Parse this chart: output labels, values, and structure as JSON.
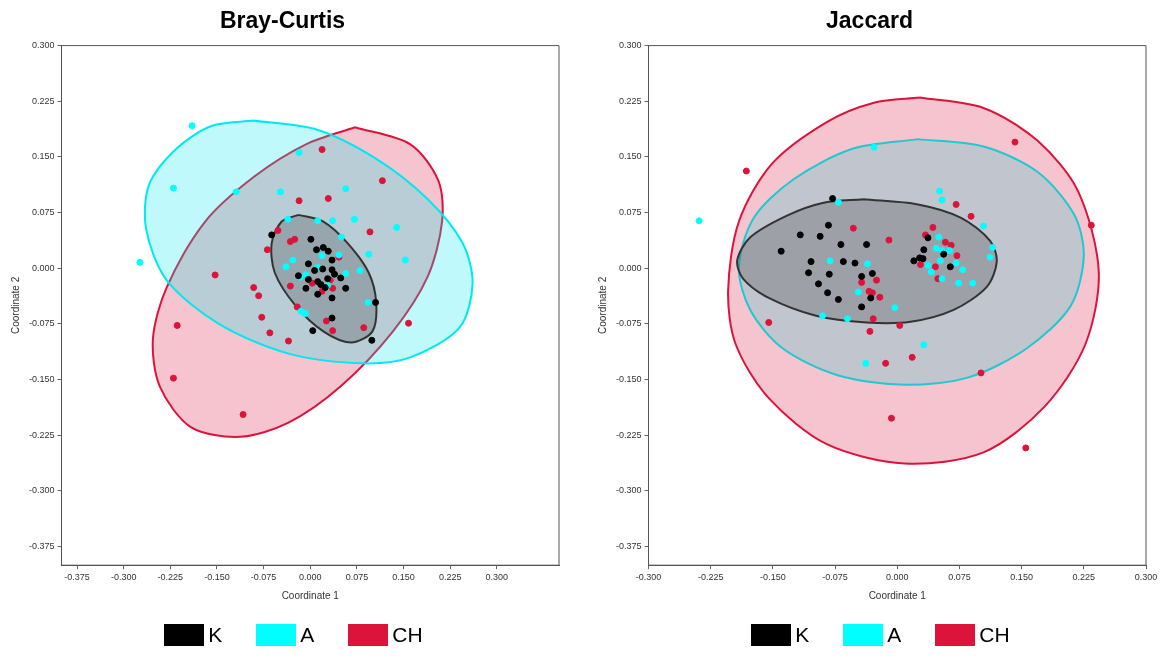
{
  "chart_data": [
    {
      "type": "scatter",
      "title": "Bray-Curtis",
      "xlabel": "Coordinate 1",
      "ylabel": "Coordinate 2",
      "marker": "circle",
      "legend": "bottom",
      "grid": false,
      "xlim": [
        -0.4,
        0.4
      ],
      "ylim": [
        -0.4,
        0.3
      ],
      "xticks": [
        {
          "value": -0.375,
          "label": "-0.375"
        },
        {
          "value": -0.3,
          "label": "-0.300"
        },
        {
          "value": -0.225,
          "label": "-0.225"
        },
        {
          "value": -0.15,
          "label": "-0.150"
        },
        {
          "value": -0.075,
          "label": "-0.075"
        },
        {
          "value": 0,
          "label": "0.000"
        },
        {
          "value": 0.075,
          "label": "0.075"
        },
        {
          "value": 0.15,
          "label": "0.150"
        },
        {
          "value": 0.225,
          "label": "0.225"
        },
        {
          "value": 0.3,
          "label": "0.300"
        }
      ],
      "yticks": [
        {
          "value": -0.375,
          "label": "-0.375"
        },
        {
          "value": -0.3,
          "label": "-0.300"
        },
        {
          "value": -0.225,
          "label": "-0.225"
        },
        {
          "value": -0.15,
          "label": "-0.150"
        },
        {
          "value": -0.075,
          "label": "-0.075"
        },
        {
          "value": 0,
          "label": "0.000"
        },
        {
          "value": 0.075,
          "label": "0.075"
        },
        {
          "value": 0.15,
          "label": "0.150"
        },
        {
          "value": 0.225,
          "label": "0.225"
        },
        {
          "value": 0.3,
          "label": "0.300"
        }
      ],
      "series": [
        {
          "type": "area",
          "marker": "none",
          "color": "#dc143c",
          "x": [
            0.072,
            0.161,
            0.206,
            0.212,
            0.189,
            0.133,
            0.049,
            -0.035,
            -0.113,
            -0.192,
            -0.242,
            -0.253,
            -0.231,
            -0.169,
            -0.091,
            -0.007,
            0.072
          ],
          "values": [
            0.19,
            0.167,
            0.118,
            0.063,
            -0.011,
            -0.085,
            -0.159,
            -0.208,
            -0.227,
            -0.214,
            -0.159,
            -0.095,
            -0.026,
            0.063,
            0.123,
            0.167,
            0.19
          ]
        },
        {
          "type": "area",
          "marker": "none",
          "color": "#00e8f0",
          "x": [
            -0.091,
            0.01,
            0.105,
            0.189,
            0.245,
            0.261,
            0.24,
            0.161,
            0.083,
            -0.035,
            -0.147,
            -0.231,
            -0.264,
            -0.259,
            -0.214,
            -0.158,
            -0.091
          ],
          "values": [
            0.199,
            0.187,
            0.148,
            0.093,
            0.034,
            -0.021,
            -0.08,
            -0.12,
            -0.128,
            -0.115,
            -0.075,
            -0.016,
            0.053,
            0.113,
            0.162,
            0.192,
            0.199
          ]
        },
        {
          "type": "area",
          "marker": "none",
          "color": "#333333",
          "x": [
            -0.019,
            0.021,
            0.06,
            0.094,
            0.106,
            0.1,
            0.066,
            0.021,
            -0.024,
            -0.057,
            -0.062,
            -0.046,
            -0.019
          ],
          "values": [
            0.072,
            0.063,
            0.034,
            -0.006,
            -0.046,
            -0.085,
            -0.1,
            -0.085,
            -0.05,
            -0.006,
            0.034,
            0.063,
            0.072
          ]
        },
        {
          "name": "K",
          "color": "#000000",
          "x": [
            -0.062,
            0.001,
            0.01,
            0.021,
            0.029,
            0.035,
            -0.003,
            0.02,
            0.035,
            0.007,
            0.039,
            -0.019,
            -0.003,
            0.012,
            0.028,
            0.049,
            0.017,
            0.024,
            -0.007,
            0.012,
            0.057,
            0.035,
            0.105,
            0.035,
            0.004,
            0.099
          ],
          "values": [
            0.045,
            0.039,
            0.025,
            0.028,
            0.023,
            0.011,
            0.006,
            -0.001,
            -0.002,
            -0.003,
            -0.008,
            -0.01,
            -0.015,
            -0.018,
            -0.014,
            -0.013,
            -0.022,
            -0.026,
            -0.027,
            -0.035,
            -0.027,
            -0.04,
            -0.046,
            -0.067,
            -0.084,
            -0.097
          ]
        },
        {
          "name": "A",
          "color": "#00ffff",
          "x": [
            -0.19,
            -0.22,
            -0.274,
            -0.119,
            -0.048,
            -0.018,
            0.057,
            -0.036,
            0.012,
            0.036,
            0.071,
            0.139,
            0.05,
            0.094,
            0.153,
            0.046,
            0.019,
            -0.028,
            -0.039,
            0.012,
            0.057,
            0.08,
            -0.007,
            -0.016,
            0.028,
            0.093,
            -0.015,
            -0.008
          ],
          "values": [
            0.192,
            0.108,
            0.008,
            0.103,
            0.103,
            0.156,
            0.107,
            0.066,
            0.064,
            0.064,
            0.066,
            0.055,
            0.042,
            0.019,
            0.011,
            0.018,
            0.017,
            0.011,
            0.002,
            0.001,
            -0.007,
            -0.003,
            -0.009,
            -0.012,
            -0.023,
            -0.046,
            -0.058,
            -0.061
          ]
        },
        {
          "name": "CH",
          "color": "#dc143c",
          "x": [
            0.019,
            0.116,
            -0.018,
            0.029,
            0.096,
            -0.052,
            -0.032,
            -0.025,
            -0.069,
            0.046,
            -0.153,
            -0.091,
            -0.083,
            -0.032,
            0.003,
            0.032,
            0.036,
            0.019,
            -0.021,
            -0.078,
            0.026,
            0.036,
            0.086,
            0.158,
            -0.065,
            -0.035,
            -0.214,
            -0.22,
            -0.108
          ],
          "values": [
            0.16,
            0.118,
            0.091,
            0.094,
            0.049,
            0.051,
            0.036,
            0.039,
            0.025,
            0.015,
            -0.009,
            -0.026,
            -0.037,
            -0.024,
            -0.02,
            -0.016,
            -0.027,
            -0.031,
            -0.052,
            -0.066,
            -0.071,
            -0.084,
            -0.08,
            -0.074,
            -0.087,
            -0.098,
            -0.077,
            -0.148,
            -0.197
          ]
        }
      ]
    },
    {
      "type": "scatter",
      "title": "Jaccard",
      "xlabel": "Coordinate 1",
      "ylabel": "Coordinate 2",
      "marker": "circle",
      "legend": "bottom",
      "grid": false,
      "xlim": [
        -0.3,
        0.3
      ],
      "ylim": [
        -0.4,
        0.3
      ],
      "xticks": [
        {
          "value": -0.3,
          "label": "-0.300"
        },
        {
          "value": -0.225,
          "label": "-0.225"
        },
        {
          "value": -0.15,
          "label": "-0.150"
        },
        {
          "value": -0.075,
          "label": "-0.075"
        },
        {
          "value": 0,
          "label": "0.000"
        },
        {
          "value": 0.075,
          "label": "0.075"
        },
        {
          "value": 0.15,
          "label": "0.150"
        },
        {
          "value": 0.225,
          "label": "0.225"
        },
        {
          "value": 0.3,
          "label": "0.300"
        }
      ],
      "yticks": [
        {
          "value": -0.375,
          "label": "-0.375"
        },
        {
          "value": -0.3,
          "label": "-0.300"
        },
        {
          "value": -0.225,
          "label": "-0.225"
        },
        {
          "value": -0.15,
          "label": "-0.150"
        },
        {
          "value": -0.075,
          "label": "-0.075"
        },
        {
          "value": 0,
          "label": "0.000"
        },
        {
          "value": 0.075,
          "label": "0.075"
        },
        {
          "value": 0.15,
          "label": "0.150"
        },
        {
          "value": 0.225,
          "label": "0.225"
        },
        {
          "value": 0.3,
          "label": "0.300"
        }
      ],
      "series": [
        {
          "type": "area",
          "marker": "none",
          "color": "#dc143c",
          "x": [
            0.027,
            0.104,
            0.169,
            0.218,
            0.243,
            0.227,
            0.178,
            0.104,
            0.009,
            -0.085,
            -0.155,
            -0.195,
            -0.204,
            -0.191,
            -0.151,
            -0.085,
            -0.028,
            0.027
          ],
          "values": [
            0.23,
            0.216,
            0.172,
            0.104,
            -0.004,
            -0.102,
            -0.186,
            -0.248,
            -0.263,
            -0.237,
            -0.175,
            -0.102,
            -0.03,
            0.063,
            0.141,
            0.197,
            0.223,
            0.23
          ]
        },
        {
          "type": "area",
          "marker": "none",
          "color": "#20c8d0",
          "x": [
            0.025,
            0.104,
            0.169,
            0.213,
            0.225,
            0.209,
            0.156,
            0.086,
            0.009,
            -0.072,
            -0.138,
            -0.177,
            -0.191,
            -0.173,
            -0.125,
            -0.054,
            0.025
          ],
          "values": [
            0.174,
            0.164,
            0.13,
            0.073,
            0.017,
            -0.051,
            -0.108,
            -0.147,
            -0.157,
            -0.144,
            -0.108,
            -0.057,
            0.001,
            0.068,
            0.12,
            0.161,
            0.174
          ]
        },
        {
          "type": "area",
          "marker": "none",
          "color": "#333333",
          "x": [
            -0.041,
            0.025,
            0.077,
            0.112,
            0.12,
            0.108,
            0.068,
            0.016,
            -0.037,
            -0.098,
            -0.155,
            -0.186,
            -0.193,
            -0.177,
            -0.133,
            -0.09,
            -0.041
          ],
          "values": [
            0.093,
            0.086,
            0.068,
            0.037,
            0.009,
            -0.025,
            -0.056,
            -0.072,
            -0.073,
            -0.064,
            -0.04,
            -0.014,
            0.011,
            0.042,
            0.071,
            0.088,
            0.093
          ]
        },
        {
          "name": "K",
          "color": "#000000",
          "x": [
            -0.078,
            -0.083,
            -0.117,
            -0.093,
            -0.14,
            -0.068,
            -0.037,
            -0.104,
            -0.065,
            -0.051,
            -0.107,
            -0.082,
            -0.043,
            -0.03,
            -0.095,
            -0.084,
            -0.071,
            -0.032,
            -0.043,
            0.037,
            0.032,
            0.02,
            0.027,
            0.031,
            0.056,
            0.064
          ],
          "values": [
            0.094,
            0.058,
            0.045,
            0.043,
            0.023,
            0.032,
            0.032,
            0.009,
            0.009,
            0.007,
            -0.006,
            -0.008,
            -0.011,
            -0.007,
            -0.021,
            -0.033,
            -0.042,
            -0.04,
            -0.052,
            0.041,
            0.025,
            0.01,
            0.014,
            0.013,
            0.019,
            0.002
          ]
        },
        {
          "name": "A",
          "color": "#00ffff",
          "x": [
            -0.239,
            -0.028,
            -0.071,
            -0.081,
            -0.036,
            -0.047,
            -0.09,
            -0.06,
            -0.003,
            0.032,
            -0.038,
            0.051,
            0.054,
            0.104,
            0.115,
            0.112,
            0.05,
            0.047,
            0.054,
            0.063,
            0.052,
            0.071,
            0.037,
            0.041,
            0.079,
            0.054,
            0.074,
            0.091
          ],
          "values": [
            0.064,
            0.163,
            0.089,
            0.01,
            0.006,
            -0.032,
            -0.064,
            -0.068,
            -0.053,
            -0.103,
            -0.128,
            0.104,
            0.092,
            0.057,
            0.028,
            0.015,
            0.042,
            0.027,
            0.024,
            0.024,
            0.01,
            0.007,
            0.004,
            -0.005,
            -0.002,
            -0.014,
            -0.02,
            -0.02
          ]
        },
        {
          "name": "CH",
          "color": "#dc143c",
          "x": [
            -0.182,
            0.142,
            0.234,
            -0.155,
            -0.053,
            -0.01,
            0.071,
            0.089,
            0.043,
            0.034,
            0.058,
            0.065,
            0.072,
            0.028,
            0.046,
            0.049,
            -0.043,
            -0.025,
            -0.034,
            -0.03,
            -0.021,
            -0.029,
            -0.033,
            0.003,
            -0.014,
            0.018,
            0.101,
            -0.007,
            0.155
          ],
          "values": [
            0.131,
            0.17,
            0.058,
            -0.073,
            0.054,
            0.038,
            0.086,
            0.07,
            0.055,
            0.045,
            0.035,
            0.031,
            0.017,
            0.005,
            0.002,
            -0.014,
            -0.019,
            -0.016,
            -0.031,
            -0.033,
            -0.039,
            -0.068,
            -0.085,
            -0.077,
            -0.128,
            -0.12,
            -0.141,
            -0.202,
            -0.242
          ]
        }
      ]
    }
  ]
}
